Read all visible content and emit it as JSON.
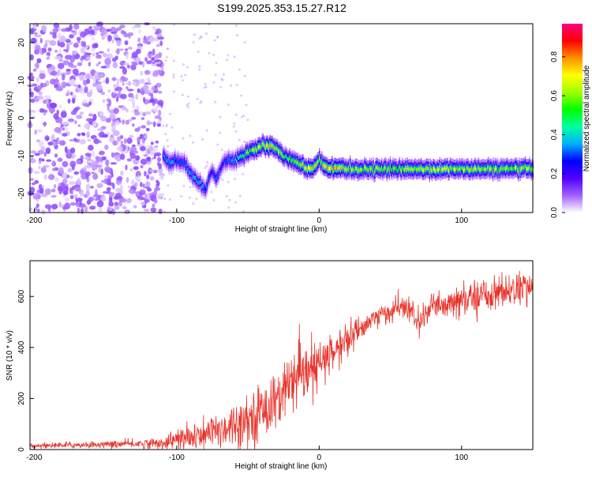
{
  "title": "S199.2025.353.15.27.R12",
  "chart_data": [
    {
      "type": "heatmap",
      "xlabel": "Height of straight line (km)",
      "ylabel": "Frequency (Hz)",
      "xlim": [
        -203,
        150
      ],
      "ylim": [
        -25,
        25
      ],
      "xticks": [
        -200,
        -100,
        0,
        100
      ],
      "yticks": [
        20,
        10,
        0,
        -10,
        -20
      ],
      "colorbar": {
        "label": "Normalized spectral amplitude",
        "range": [
          0,
          0.97
        ],
        "ticks": [
          "0.0",
          "0.2",
          "0.4",
          "0.6",
          "0.8"
        ],
        "colors": [
          "#ffffff",
          "#a060ff",
          "#5000ff",
          "#0000ff",
          "#00b0ff",
          "#00ffa0",
          "#00ff00",
          "#a0ff00",
          "#ffff00",
          "#ff9000",
          "#ff0000",
          "#ff0080"
        ]
      },
      "noise_region": {
        "x_from": -203,
        "x_to": -110,
        "amplitude_range": [
          0.02,
          0.12
        ]
      },
      "signal_ridge": {
        "x": [
          -110,
          -105,
          -100,
          -95,
          -90,
          -85,
          -80,
          -76,
          -72,
          -68,
          -64,
          -60,
          -55,
          -50,
          -45,
          -40,
          -35,
          -30,
          -25,
          -20,
          -15,
          -10,
          -5,
          0,
          5,
          10,
          15,
          20,
          40,
          60,
          80,
          100,
          120,
          150
        ],
        "frequency": [
          -10,
          -12,
          -11,
          -12,
          -15,
          -17,
          -19,
          -14,
          -16,
          -12,
          -11,
          -11,
          -10,
          -9,
          -8,
          -7,
          -7.5,
          -8,
          -10,
          -11,
          -12,
          -13,
          -13.5,
          -11,
          -13,
          -13.5,
          -13,
          -13.5,
          -13.5,
          -13.5,
          -13.5,
          -13.5,
          -13.5,
          -13.5
        ],
        "amplitude": [
          0.3,
          0.35,
          0.3,
          0.3,
          0.35,
          0.35,
          0.3,
          0.25,
          0.3,
          0.25,
          0.3,
          0.35,
          0.45,
          0.55,
          0.6,
          0.65,
          0.75,
          0.6,
          0.55,
          0.5,
          0.6,
          0.65,
          0.7,
          0.6,
          0.7,
          0.8,
          0.7,
          0.6,
          0.6,
          0.6,
          0.65,
          0.6,
          0.6,
          0.6
        ]
      }
    },
    {
      "type": "line",
      "xlabel": "Height of straight line (km)",
      "ylabel": "SNR (10 * v/v)",
      "xlim": [
        -203,
        150
      ],
      "ylim": [
        0,
        740
      ],
      "xticks": [
        -200,
        -100,
        0,
        100
      ],
      "yticks": [
        0,
        200,
        400,
        600
      ],
      "series": [
        {
          "name": "SNR",
          "color": "#e8332a",
          "trend_x": [
            -203,
            -150,
            -110,
            -100,
            -90,
            -80,
            -70,
            -60,
            -50,
            -40,
            -30,
            -20,
            -10,
            0,
            10,
            20,
            30,
            40,
            50,
            60,
            70,
            80,
            90,
            100,
            110,
            120,
            130,
            140,
            150
          ],
          "trend_y": [
            15,
            20,
            25,
            40,
            45,
            55,
            80,
            100,
            120,
            150,
            200,
            250,
            290,
            330,
            380,
            430,
            480,
            520,
            540,
            560,
            500,
            560,
            560,
            580,
            600,
            610,
            620,
            630,
            640
          ],
          "noise_y": [
            10,
            12,
            20,
            40,
            50,
            60,
            70,
            80,
            90,
            100,
            110,
            110,
            100,
            90,
            80,
            70,
            40,
            40,
            40,
            40,
            50,
            50,
            50,
            60,
            60,
            60,
            60,
            60,
            60
          ]
        }
      ]
    }
  ]
}
